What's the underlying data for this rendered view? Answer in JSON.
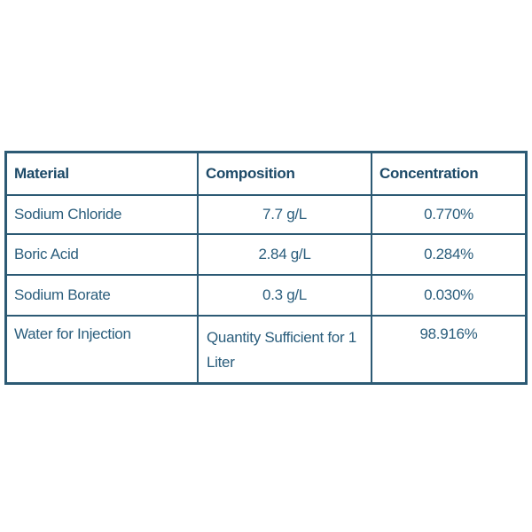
{
  "table": {
    "headers": [
      "Material",
      "Composition",
      "Concentration"
    ],
    "rows": [
      [
        "Sodium Chloride",
        "7.7 g/L",
        "0.770%"
      ],
      [
        "Boric Acid",
        "2.84 g/L",
        "0.284%"
      ],
      [
        "Sodium Borate",
        "0.3 g/L",
        "0.030%"
      ],
      [
        "Water for Injection",
        "Quantity Sufficient for 1 Liter",
        "98.916%"
      ]
    ]
  }
}
